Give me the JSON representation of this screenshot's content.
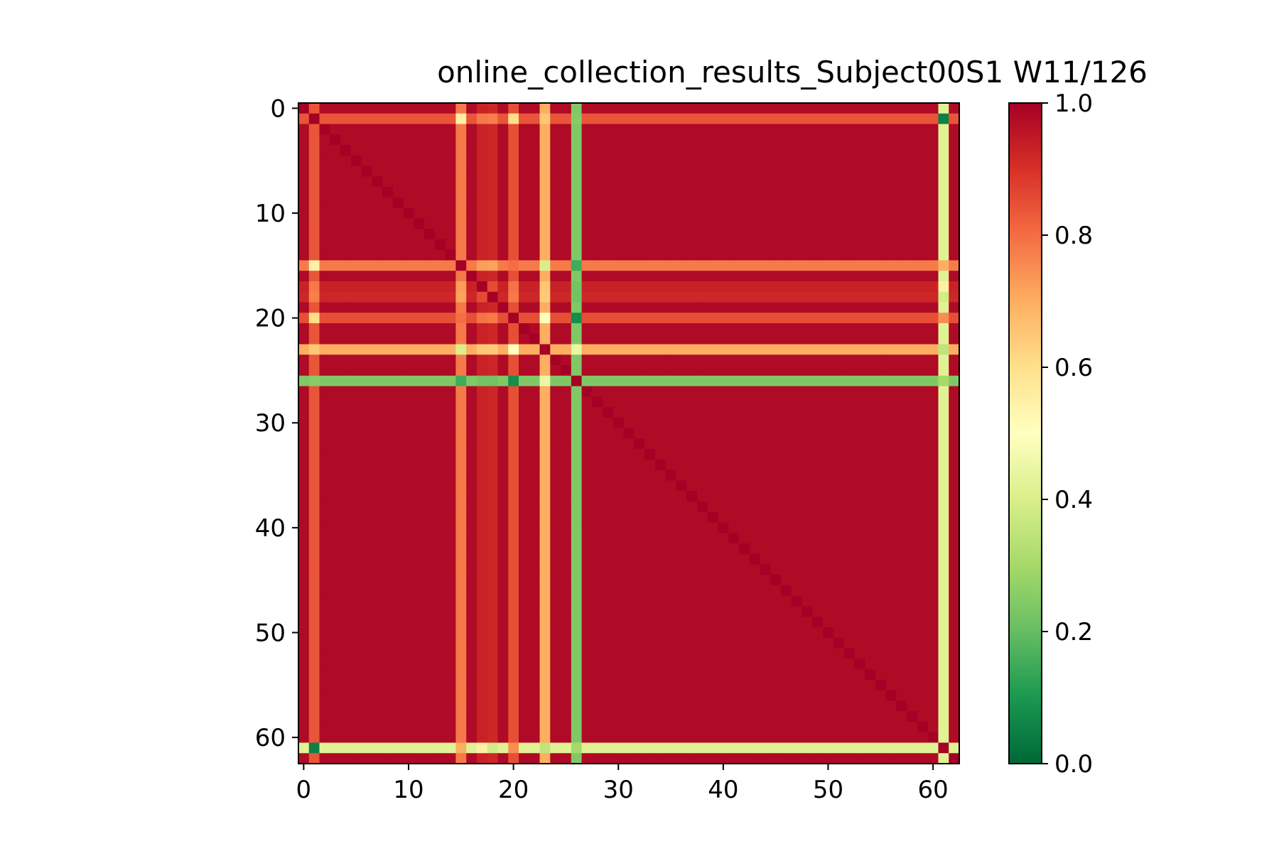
{
  "chart_data": {
    "type": "heatmap",
    "title": "online_collection_results_Subject00S1 W11/126",
    "xlabel": "",
    "ylabel": "",
    "size": 63,
    "xticks": [
      0,
      10,
      20,
      30,
      40,
      50,
      60
    ],
    "yticks": [
      0,
      10,
      20,
      30,
      40,
      50,
      60
    ],
    "colorbar": {
      "ticks": [
        "0.0",
        "0.2",
        "0.4",
        "0.6",
        "0.8",
        "1.0"
      ],
      "range": [
        0,
        1
      ],
      "colormap": "RdYlGn_r",
      "colors": [
        "#006837",
        "#1a9850",
        "#66bd63",
        "#a6d96a",
        "#d9ef8b",
        "#ffffbf",
        "#fee08b",
        "#fdae61",
        "#f46d43",
        "#d73027",
        "#a50026"
      ]
    },
    "background_value": 0.98,
    "channel_profiles": [
      {
        "index": 1,
        "value": 0.84
      },
      {
        "index": 15,
        "value": 0.78
      },
      {
        "index": 17,
        "value": 0.93
      },
      {
        "index": 18,
        "value": 0.92
      },
      {
        "index": 20,
        "value": 0.85
      },
      {
        "index": 23,
        "value": 0.7
      },
      {
        "index": 26,
        "value": 0.24
      },
      {
        "index": 61,
        "value": 0.42
      }
    ],
    "pair_values": [
      {
        "i": 1,
        "j": 15,
        "value": 0.55
      },
      {
        "i": 1,
        "j": 20,
        "value": 0.6
      },
      {
        "i": 1,
        "j": 23,
        "value": 0.65
      },
      {
        "i": 1,
        "j": 26,
        "value": 0.25
      },
      {
        "i": 1,
        "j": 61,
        "value": 0.05
      },
      {
        "i": 15,
        "j": 20,
        "value": 0.8
      },
      {
        "i": 15,
        "j": 23,
        "value": 0.4
      },
      {
        "i": 15,
        "j": 26,
        "value": 0.15
      },
      {
        "i": 15,
        "j": 61,
        "value": 0.7
      },
      {
        "i": 17,
        "j": 61,
        "value": 0.55
      },
      {
        "i": 20,
        "j": 23,
        "value": 0.5
      },
      {
        "i": 20,
        "j": 26,
        "value": 0.08
      },
      {
        "i": 20,
        "j": 61,
        "value": 0.75
      },
      {
        "i": 23,
        "j": 26,
        "value": 0.45
      },
      {
        "i": 23,
        "j": 61,
        "value": 0.35
      },
      {
        "i": 26,
        "j": 61,
        "value": 0.3
      }
    ]
  }
}
